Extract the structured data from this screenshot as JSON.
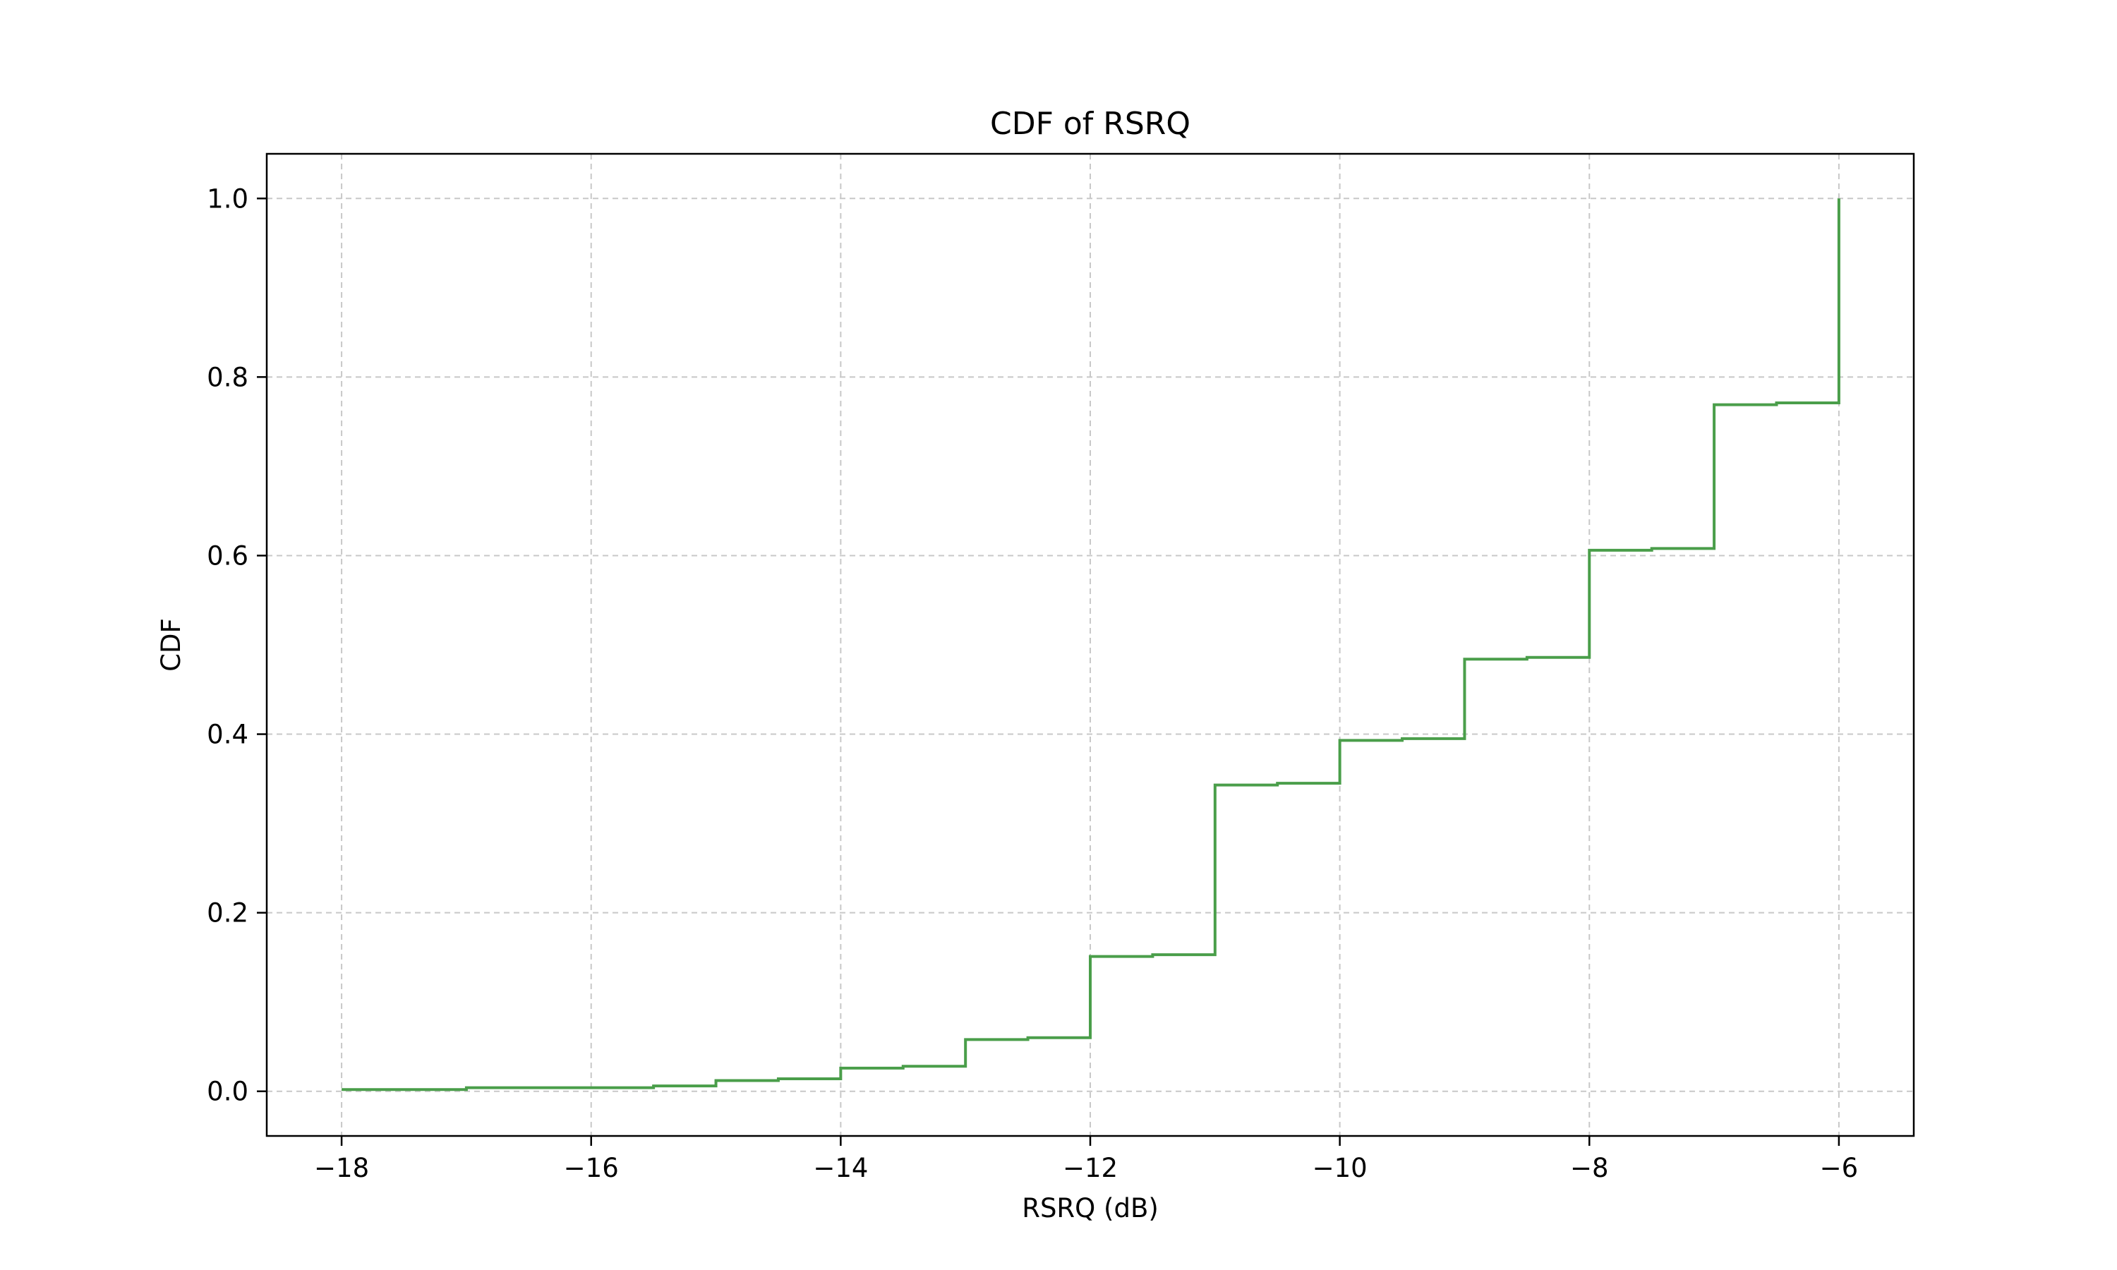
{
  "chart_data": {
    "type": "line",
    "step": "post",
    "title": "CDF of RSRQ",
    "xlabel": "RSRQ (dB)",
    "ylabel": "CDF",
    "xlim": [
      -18.6,
      -5.4
    ],
    "ylim": [
      -0.05,
      1.05
    ],
    "xticks": [
      -18,
      -16,
      -14,
      -12,
      -10,
      -8,
      -6
    ],
    "xtick_labels": [
      "−18",
      "−16",
      "−14",
      "−12",
      "−10",
      "−8",
      "−6"
    ],
    "yticks": [
      0.0,
      0.2,
      0.4,
      0.6,
      0.8,
      1.0
    ],
    "ytick_labels": [
      "0.0",
      "0.2",
      "0.4",
      "0.6",
      "0.8",
      "1.0"
    ],
    "grid": true,
    "legend": "none",
    "series": [
      {
        "color": "#4a9e4a",
        "x": [
          -18.0,
          -17.5,
          -17.0,
          -16.5,
          -16.0,
          -15.5,
          -15.0,
          -14.5,
          -14.0,
          -13.5,
          -13.0,
          -12.5,
          -12.0,
          -11.5,
          -11.0,
          -10.5,
          -10.0,
          -9.5,
          -9.0,
          -8.5,
          -8.0,
          -7.5,
          -7.0,
          -6.5,
          -6.0,
          -6.0
        ],
        "y": [
          0.002,
          0.002,
          0.004,
          0.004,
          0.004,
          0.006,
          0.012,
          0.014,
          0.026,
          0.028,
          0.058,
          0.06,
          0.151,
          0.153,
          0.343,
          0.345,
          0.393,
          0.395,
          0.484,
          0.486,
          0.606,
          0.608,
          0.769,
          0.771,
          0.771,
          1.0
        ]
      }
    ]
  }
}
